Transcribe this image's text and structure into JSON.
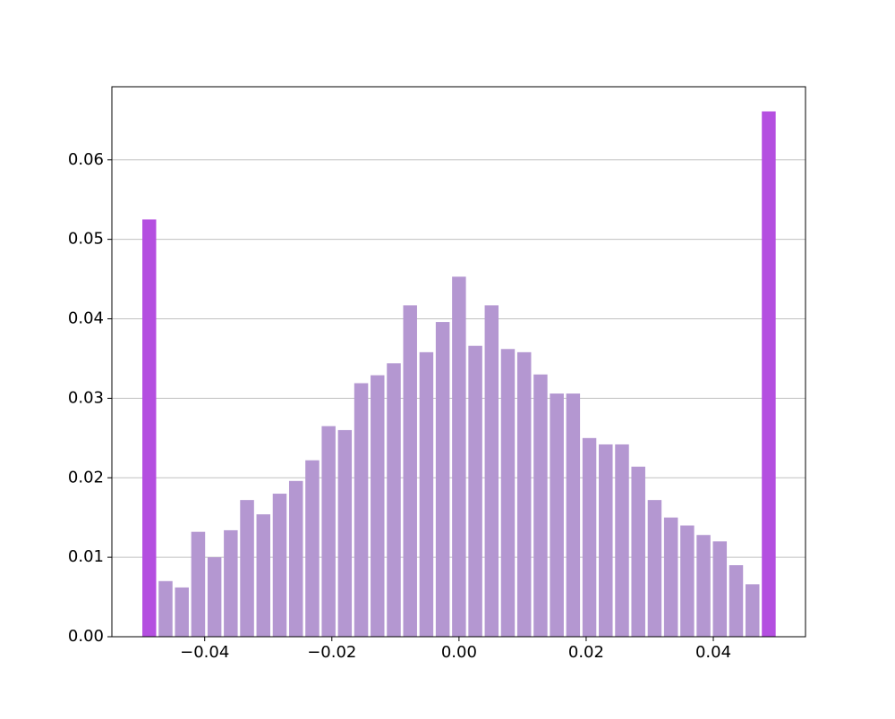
{
  "chart_data": {
    "type": "histogram",
    "bins": [
      -0.05,
      -0.04744,
      -0.04487,
      -0.04231,
      -0.03974,
      -0.03718,
      -0.03462,
      -0.03205,
      -0.02949,
      -0.02692,
      -0.02436,
      -0.02179,
      -0.01923,
      -0.01667,
      -0.0141,
      -0.01154,
      -0.00897,
      -0.00641,
      -0.00385,
      -0.00128,
      0.00128,
      0.00385,
      0.00641,
      0.00897,
      0.01154,
      0.0141,
      0.01667,
      0.01923,
      0.02179,
      0.02436,
      0.02692,
      0.02949,
      0.03205,
      0.03462,
      0.03718,
      0.03974,
      0.04231,
      0.04487,
      0.04744,
      0.05
    ],
    "values": [
      0.0525,
      0.007,
      0.0062,
      0.0132,
      0.01,
      0.0134,
      0.0172,
      0.0154,
      0.018,
      0.0196,
      0.0222,
      0.0265,
      0.026,
      0.0319,
      0.0329,
      0.0344,
      0.0417,
      0.0358,
      0.0396,
      0.0453,
      0.0366,
      0.0417,
      0.0362,
      0.0358,
      0.033,
      0.0306,
      0.0306,
      0.025,
      0.0242,
      0.0242,
      0.0214,
      0.0172,
      0.015,
      0.014,
      0.0128,
      0.012,
      0.009,
      0.0066,
      0.0661
    ],
    "color": "#b497d1",
    "outer_color": "#b44fe0",
    "xlim": [
      -0.0546,
      0.0545
    ],
    "ylim": [
      0,
      0.0692
    ],
    "xticks": [
      {
        "value": -0.04,
        "label": "−0.04"
      },
      {
        "value": -0.02,
        "label": "−0.02"
      },
      {
        "value": 0,
        "label": "0.00"
      },
      {
        "value": 0.02,
        "label": "0.02"
      },
      {
        "value": 0.04,
        "label": "0.04"
      }
    ],
    "yticks": [
      {
        "value": 0,
        "label": "0.00"
      },
      {
        "value": 0.01,
        "label": "0.01"
      },
      {
        "value": 0.02,
        "label": "0.02"
      },
      {
        "value": 0.03,
        "label": "0.03"
      },
      {
        "value": 0.04,
        "label": "0.04"
      },
      {
        "value": 0.05,
        "label": "0.05"
      },
      {
        "value": 0.06,
        "label": "0.06"
      }
    ],
    "grid": "y"
  }
}
